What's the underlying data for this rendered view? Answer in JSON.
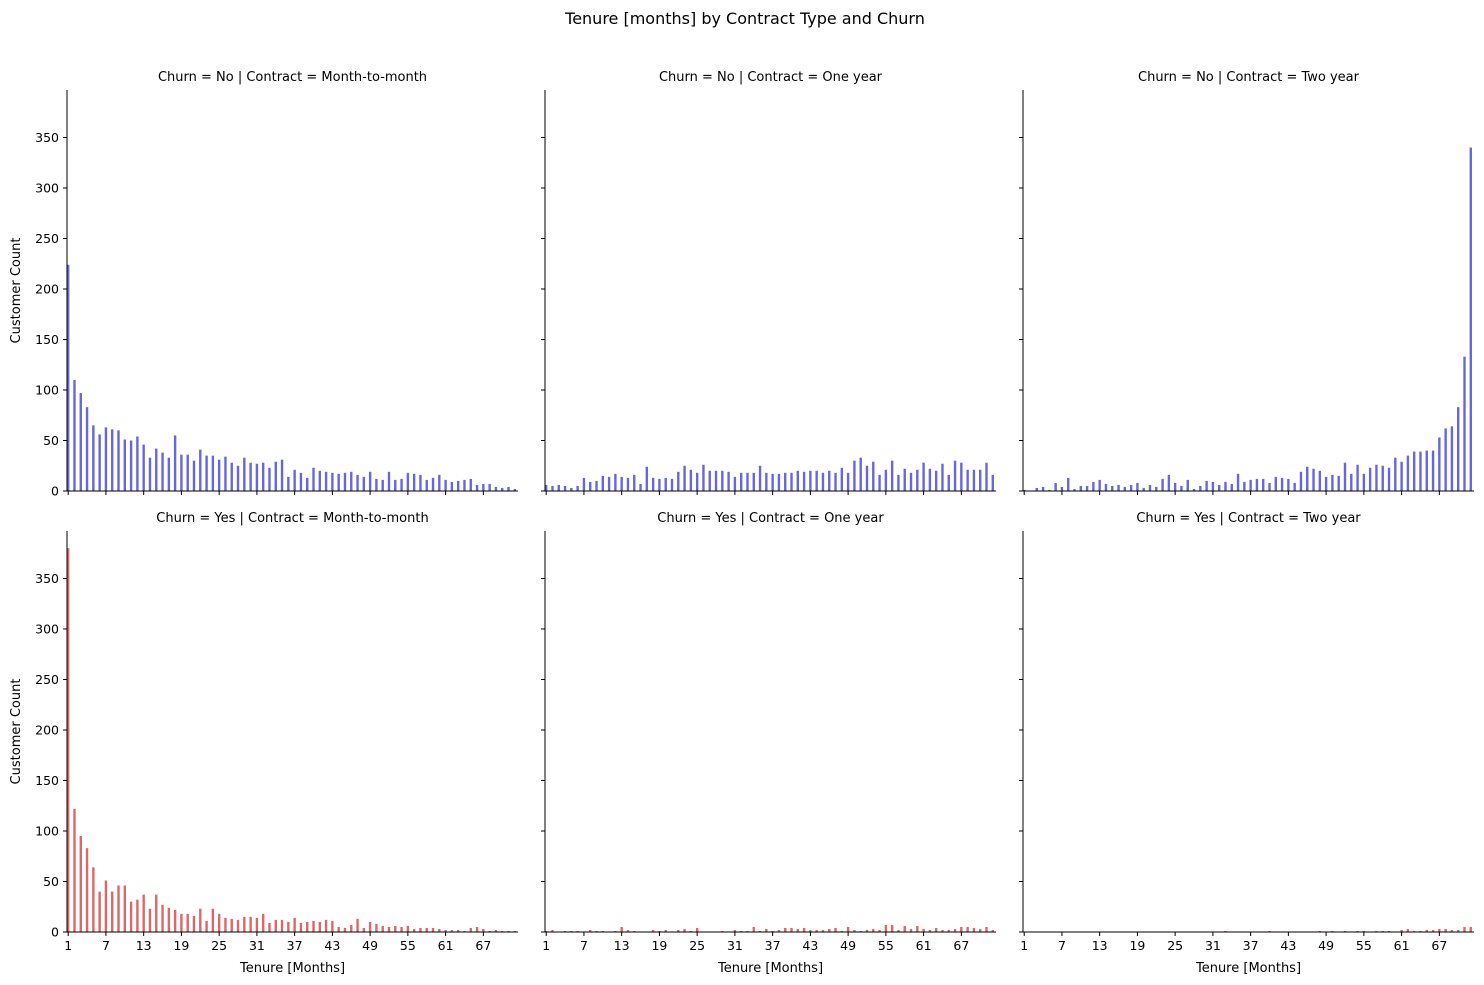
{
  "chart_data": {
    "type": "bar",
    "title": "Tenure [months] by Contract Type and Churn",
    "xlabel": "Tenure [Months]",
    "ylabel": "Customer Count",
    "x": [
      1,
      2,
      3,
      4,
      5,
      6,
      7,
      8,
      9,
      10,
      11,
      12,
      13,
      14,
      15,
      16,
      17,
      18,
      19,
      20,
      21,
      22,
      23,
      24,
      25,
      26,
      27,
      28,
      29,
      30,
      31,
      32,
      33,
      34,
      35,
      36,
      37,
      38,
      39,
      40,
      41,
      42,
      43,
      44,
      45,
      46,
      47,
      48,
      49,
      50,
      51,
      52,
      53,
      54,
      55,
      56,
      57,
      58,
      59,
      60,
      61,
      62,
      63,
      64,
      65,
      66,
      67,
      68,
      69,
      70,
      71,
      72
    ],
    "xticks": [
      "1",
      "7",
      "13",
      "19",
      "25",
      "31",
      "37",
      "43",
      "49",
      "55",
      "61",
      "67"
    ],
    "yticks": [
      "0",
      "50",
      "100",
      "150",
      "200",
      "250",
      "300",
      "350"
    ],
    "ylim": [
      0,
      397
    ],
    "shared_y": true,
    "colors": {
      "No": "#6666dd",
      "Yes": "#dd6666"
    },
    "panels": [
      {
        "title": "Churn = No | Contract = Month-to-month",
        "churn": "No",
        "values": [
          224,
          110,
          97,
          83,
          65,
          56,
          63,
          61,
          60,
          51,
          50,
          54,
          46,
          33,
          42,
          38,
          33,
          55,
          36,
          36,
          30,
          41,
          35,
          35,
          31,
          34,
          28,
          25,
          33,
          28,
          27,
          28,
          23,
          29,
          31,
          14,
          21,
          18,
          13,
          23,
          20,
          19,
          18,
          17,
          18,
          19,
          16,
          14,
          19,
          12,
          11,
          19,
          11,
          12,
          18,
          17,
          16,
          11,
          13,
          16,
          11,
          9,
          10,
          11,
          12,
          6,
          7,
          7,
          4,
          3,
          4,
          2
        ]
      },
      {
        "title": "Churn = No | Contract = One year",
        "churn": "No",
        "values": [
          6,
          5,
          6,
          5,
          3,
          5,
          13,
          9,
          10,
          15,
          14,
          17,
          14,
          13,
          16,
          7,
          24,
          13,
          12,
          13,
          12,
          19,
          25,
          21,
          18,
          26,
          20,
          20,
          20,
          19,
          14,
          18,
          18,
          18,
          25,
          18,
          17,
          17,
          18,
          18,
          20,
          19,
          20,
          20,
          18,
          20,
          18,
          23,
          18,
          30,
          33,
          25,
          29,
          16,
          21,
          30,
          16,
          22,
          18,
          21,
          28,
          22,
          20,
          27,
          16,
          30,
          28,
          21,
          21,
          21,
          28,
          16
        ]
      },
      {
        "title": "Churn = No | Contract = Two year",
        "churn": "No",
        "values": [
          1,
          0,
          3,
          4,
          1,
          8,
          4,
          13,
          2,
          5,
          5,
          9,
          11,
          7,
          5,
          6,
          4,
          6,
          8,
          3,
          6,
          4,
          12,
          16,
          8,
          5,
          11,
          2,
          5,
          10,
          9,
          6,
          9,
          7,
          17,
          9,
          11,
          12,
          12,
          8,
          14,
          13,
          12,
          8,
          19,
          24,
          22,
          20,
          14,
          16,
          15,
          28,
          17,
          26,
          17,
          23,
          26,
          25,
          23,
          33,
          29,
          35,
          39,
          39,
          40,
          40,
          53,
          62,
          64,
          83,
          133,
          340
        ]
      },
      {
        "title": "Churn = Yes | Contract = Month-to-month",
        "churn": "Yes",
        "values": [
          380,
          122,
          95,
          83,
          64,
          40,
          51,
          40,
          46,
          46,
          30,
          32,
          37,
          23,
          37,
          27,
          24,
          22,
          18,
          18,
          16,
          23,
          11,
          23,
          18,
          14,
          13,
          12,
          15,
          15,
          14,
          18,
          9,
          12,
          12,
          10,
          14,
          9,
          10,
          11,
          10,
          12,
          11,
          5,
          4,
          7,
          13,
          4,
          10,
          8,
          6,
          5,
          6,
          5,
          6,
          3,
          4,
          4,
          4,
          3,
          2,
          2,
          2,
          1,
          4,
          5,
          3,
          1,
          2,
          1,
          1,
          1
        ]
      },
      {
        "title": "Churn = Yes | Contract = One year",
        "churn": "Yes",
        "values": [
          1,
          2,
          0,
          1,
          1,
          1,
          0,
          2,
          1,
          1,
          0,
          1,
          5,
          2,
          1,
          0,
          0,
          2,
          1,
          2,
          0,
          2,
          3,
          1,
          4,
          0,
          0,
          0,
          1,
          0,
          2,
          1,
          1,
          5,
          1,
          3,
          1,
          2,
          4,
          4,
          3,
          4,
          2,
          2,
          2,
          3,
          4,
          1,
          5,
          2,
          1,
          2,
          3,
          2,
          7,
          7,
          2,
          6,
          3,
          6,
          3,
          2,
          4,
          2,
          2,
          3,
          5,
          5,
          4,
          3,
          5,
          2
        ]
      },
      {
        "title": "Churn = Yes | Contract = Two year",
        "churn": "Yes",
        "values": [
          0,
          0,
          0,
          0,
          0,
          0,
          0,
          0,
          0,
          0,
          0,
          0,
          0,
          0,
          0,
          0,
          0,
          0,
          0,
          0,
          0,
          0,
          0,
          0,
          0,
          0,
          0,
          0,
          0,
          0,
          0,
          0,
          1,
          0,
          0,
          0,
          0,
          0,
          0,
          1,
          0,
          0,
          0,
          0,
          0,
          0,
          0,
          1,
          0,
          1,
          0,
          1,
          0,
          1,
          1,
          0,
          1,
          1,
          1,
          0,
          2,
          3,
          1,
          1,
          2,
          2,
          3,
          3,
          2,
          2,
          5,
          5
        ]
      }
    ]
  }
}
